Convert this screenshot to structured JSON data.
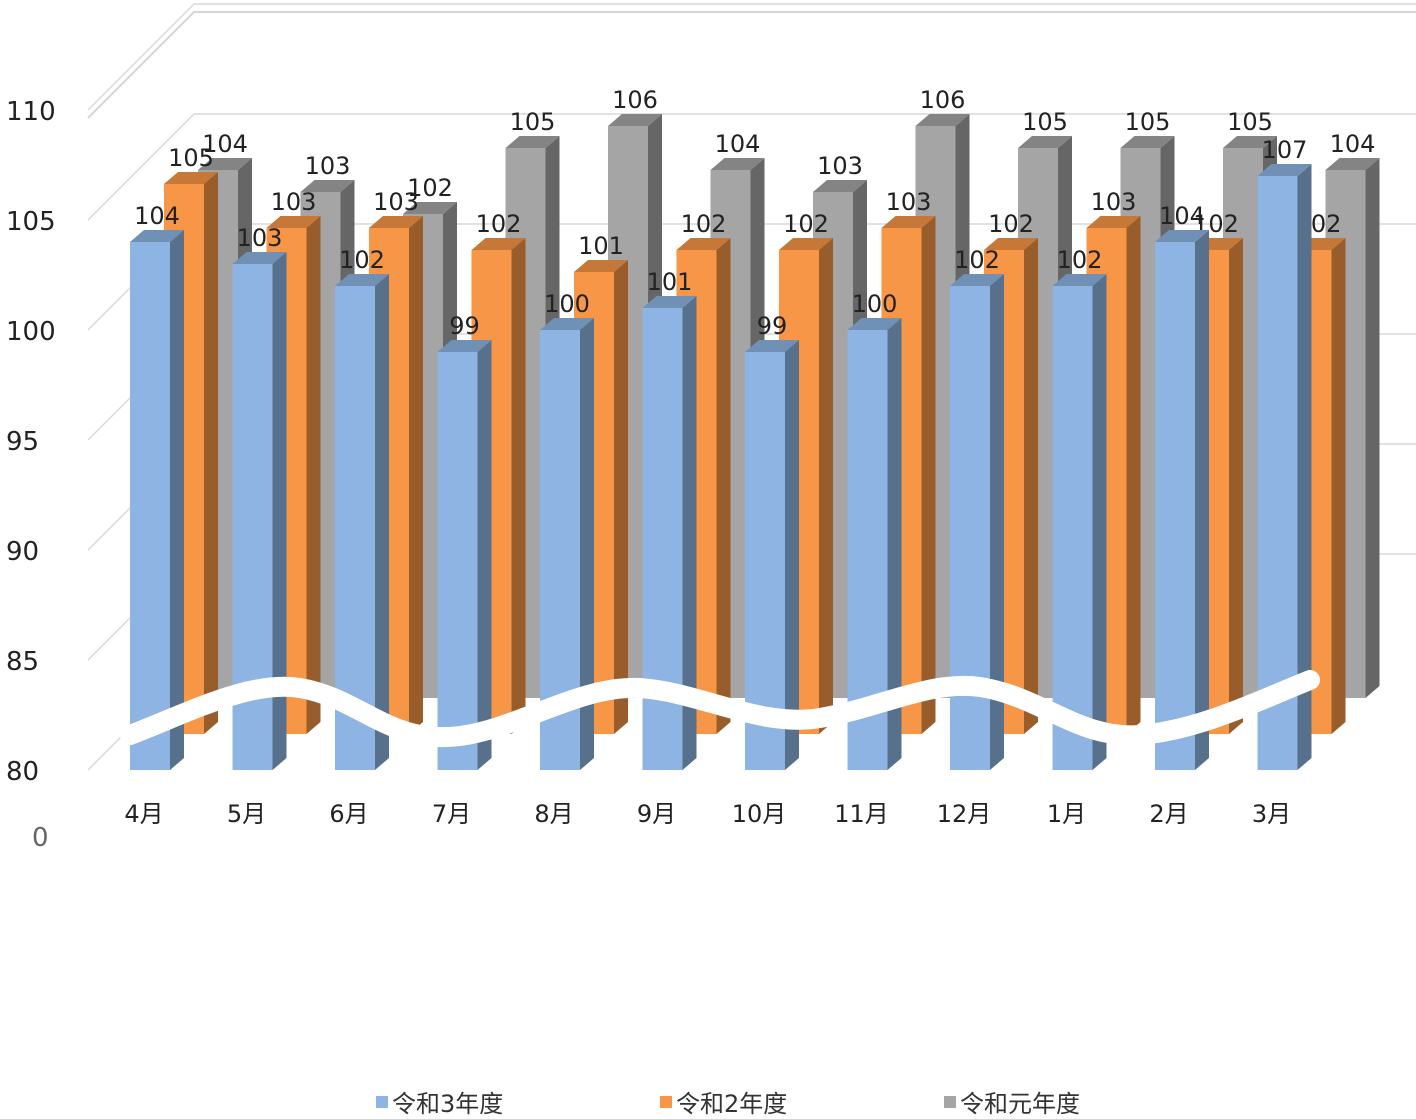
{
  "chart_data": {
    "type": "bar",
    "style": "3d-clustered-column",
    "title": "",
    "xlabel": "",
    "ylabel": "",
    "ylim": [
      80,
      110
    ],
    "y_ticks": [
      "110",
      "105",
      "100",
      "95",
      "90",
      "85",
      "80"
    ],
    "y_break_label": "0",
    "axis_break": true,
    "grid": true,
    "legend_position": "bottom",
    "categories": [
      "4月",
      "5月",
      "6月",
      "7月",
      "8月",
      "9月",
      "10月",
      "11月",
      "12月",
      "1月",
      "2月",
      "3月"
    ],
    "series": [
      {
        "name": "令和3年度",
        "color": "#8DB4E2",
        "values": [
          104,
          103,
          102,
          99,
          100,
          101,
          99,
          100,
          102,
          102,
          104,
          107
        ]
      },
      {
        "name": "令和2年度",
        "color": "#F79646",
        "values": [
          105,
          103,
          103,
          102,
          101,
          102,
          102,
          103,
          102,
          103,
          102,
          102
        ]
      },
      {
        "name": "令和元年度",
        "color": "#A5A5A5",
        "values": [
          104,
          103,
          102,
          105,
          106,
          104,
          103,
          106,
          105,
          105,
          105,
          104
        ]
      }
    ]
  }
}
